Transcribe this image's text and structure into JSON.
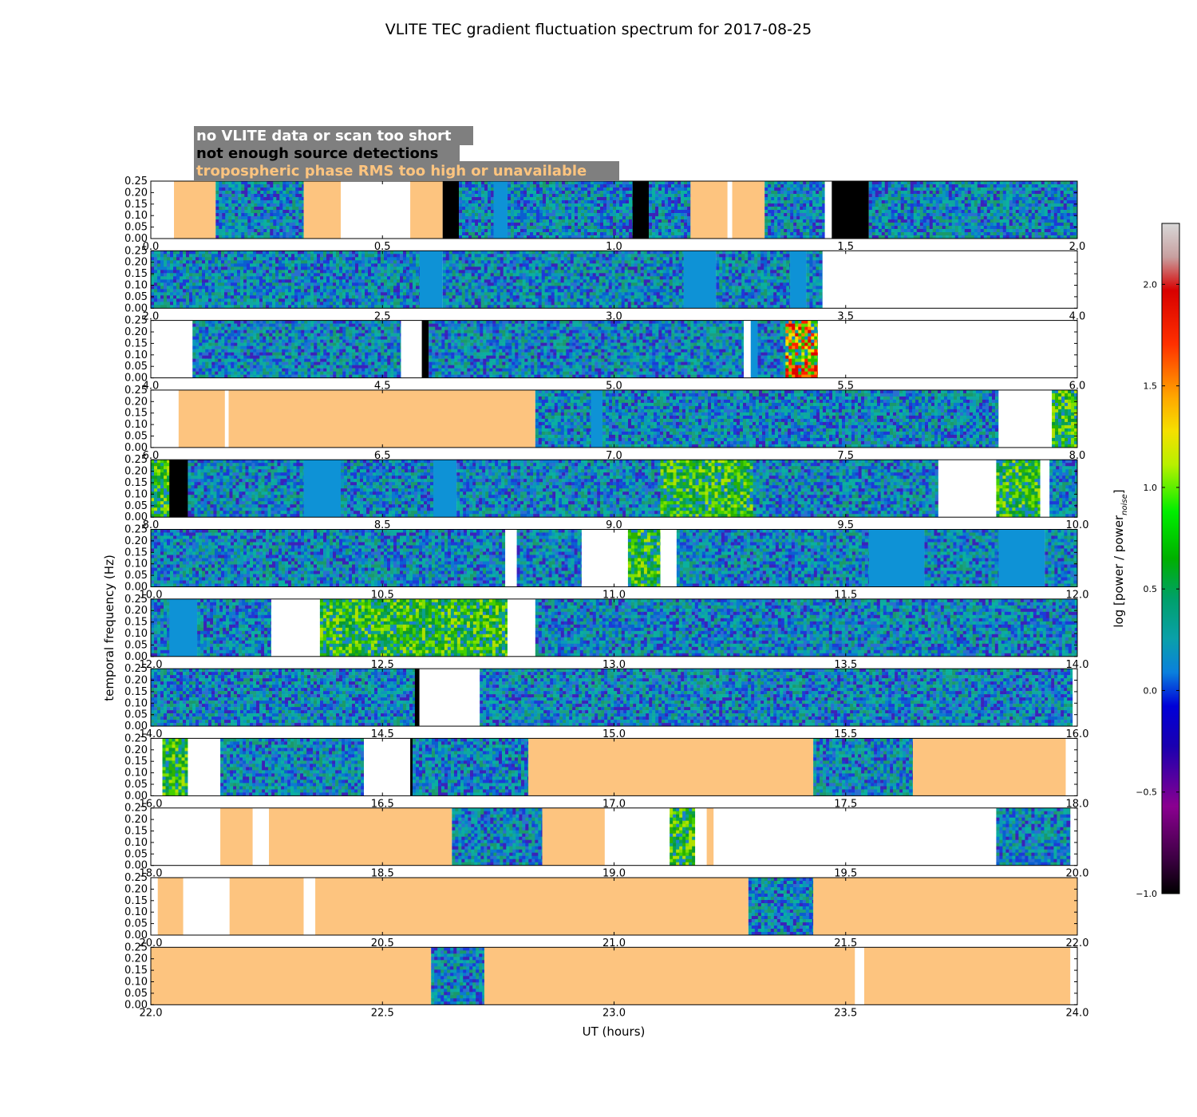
{
  "chart_data": {
    "type": "heatmap",
    "title": "VLITE TEC gradient fluctuation spectrum for 2017-08-25",
    "xlabel": "UT (hours)",
    "ylabel": "temporal frequency (Hz)",
    "colorbar": {
      "label": "log [power / power",
      "label_sub": "noise",
      "label_close": "]",
      "range": [
        -1.0,
        2.3
      ],
      "ticks": [
        "−1.0",
        "−0.5",
        "0.0",
        "0.5",
        "1.0",
        "1.5",
        "2.0"
      ],
      "tick_values": [
        -1.0,
        -0.5,
        0.0,
        0.5,
        1.0,
        1.5,
        2.0
      ]
    },
    "yticks": [
      "0.00",
      "0.05",
      "0.10",
      "0.15",
      "0.20",
      "0.25"
    ],
    "ytick_values": [
      0.0,
      0.05,
      0.1,
      0.15,
      0.2,
      0.25
    ],
    "ylim": [
      0,
      0.25
    ],
    "legend": [
      {
        "text": "no VLITE data or scan too short",
        "color": "#ffffff"
      },
      {
        "text": "not enough source detections",
        "color": "#000000"
      },
      {
        "text": "tropospheric phase RMS too high or unavailable",
        "color": "#fdc47f"
      }
    ],
    "status_colors": {
      "none": "#ffffff",
      "low": "#000000",
      "trop": "#fdc47f",
      "flat": "#0e92d6"
    },
    "panels": [
      {
        "xlim": [
          0.0,
          2.0
        ],
        "xticks": [
          "0.0",
          "0.5",
          "1.0",
          "1.5",
          "2.0"
        ],
        "segments": [
          [
            0.0,
            0.05,
            "none"
          ],
          [
            0.05,
            0.14,
            "trop"
          ],
          [
            0.14,
            0.33,
            "data"
          ],
          [
            0.33,
            0.41,
            "trop"
          ],
          [
            0.41,
            0.56,
            "none"
          ],
          [
            0.56,
            0.63,
            "trop"
          ],
          [
            0.63,
            0.665,
            "low"
          ],
          [
            0.665,
            0.74,
            "data"
          ],
          [
            0.74,
            0.77,
            "flat"
          ],
          [
            0.77,
            1.04,
            "data"
          ],
          [
            1.04,
            1.075,
            "low"
          ],
          [
            1.075,
            1.165,
            "data"
          ],
          [
            1.165,
            1.245,
            "trop"
          ],
          [
            1.245,
            1.255,
            "none"
          ],
          [
            1.255,
            1.325,
            "trop"
          ],
          [
            1.325,
            1.455,
            "data"
          ],
          [
            1.455,
            1.47,
            "none"
          ],
          [
            1.47,
            1.55,
            "low"
          ],
          [
            1.55,
            2.0,
            "data"
          ]
        ]
      },
      {
        "xlim": [
          2.0,
          4.0
        ],
        "xticks": [
          "2.0",
          "2.5",
          "3.0",
          "3.5",
          "4.0"
        ],
        "segments": [
          [
            2.0,
            2.58,
            "data"
          ],
          [
            2.58,
            2.63,
            "flat"
          ],
          [
            2.63,
            3.15,
            "data"
          ],
          [
            3.15,
            3.22,
            "flat"
          ],
          [
            3.22,
            3.38,
            "data"
          ],
          [
            3.38,
            3.415,
            "flat"
          ],
          [
            3.415,
            3.45,
            "data"
          ],
          [
            3.45,
            4.0,
            "none"
          ]
        ]
      },
      {
        "xlim": [
          4.0,
          6.0
        ],
        "xticks": [
          "4.0",
          "4.5",
          "5.0",
          "5.5",
          "6.0"
        ],
        "segments": [
          [
            4.0,
            4.09,
            "none"
          ],
          [
            4.09,
            4.54,
            "data"
          ],
          [
            4.54,
            4.585,
            "none"
          ],
          [
            4.585,
            4.6,
            "low"
          ],
          [
            4.6,
            5.28,
            "data"
          ],
          [
            5.28,
            5.295,
            "none"
          ],
          [
            5.295,
            5.31,
            "flat"
          ],
          [
            5.31,
            5.37,
            "data"
          ],
          [
            5.37,
            5.44,
            "hot"
          ],
          [
            5.44,
            6.0,
            "none"
          ]
        ]
      },
      {
        "xlim": [
          6.0,
          8.0
        ],
        "xticks": [
          "6.0",
          "6.5",
          "7.0",
          "7.5",
          "8.0"
        ],
        "segments": [
          [
            6.0,
            6.06,
            "none"
          ],
          [
            6.06,
            6.16,
            "trop"
          ],
          [
            6.16,
            6.168,
            "none"
          ],
          [
            6.168,
            6.83,
            "trop"
          ],
          [
            6.83,
            6.95,
            "data"
          ],
          [
            6.95,
            6.975,
            "flat"
          ],
          [
            6.975,
            7.83,
            "data"
          ],
          [
            7.83,
            7.945,
            "none"
          ],
          [
            7.945,
            8.0,
            "green"
          ]
        ]
      },
      {
        "xlim": [
          8.0,
          10.0
        ],
        "xticks": [
          "8.0",
          "8.5",
          "9.0",
          "9.5",
          "10.0"
        ],
        "segments": [
          [
            8.0,
            8.04,
            "green"
          ],
          [
            8.04,
            8.08,
            "low"
          ],
          [
            8.08,
            8.33,
            "data"
          ],
          [
            8.33,
            8.41,
            "flat"
          ],
          [
            8.41,
            8.61,
            "data"
          ],
          [
            8.61,
            8.66,
            "flat"
          ],
          [
            8.66,
            9.1,
            "data"
          ],
          [
            9.1,
            9.3,
            "green"
          ],
          [
            9.3,
            9.7,
            "data"
          ],
          [
            9.7,
            9.825,
            "none"
          ],
          [
            9.825,
            9.92,
            "green"
          ],
          [
            9.92,
            9.94,
            "none"
          ],
          [
            9.94,
            10.0,
            "data"
          ]
        ]
      },
      {
        "xlim": [
          10.0,
          12.0
        ],
        "xticks": [
          "10.0",
          "10.5",
          "11.0",
          "11.5",
          "12.0"
        ],
        "segments": [
          [
            10.0,
            10.765,
            "data"
          ],
          [
            10.765,
            10.79,
            "none"
          ],
          [
            10.79,
            10.93,
            "data"
          ],
          [
            10.93,
            11.03,
            "none"
          ],
          [
            11.03,
            11.1,
            "green"
          ],
          [
            11.1,
            11.135,
            "none"
          ],
          [
            11.135,
            11.55,
            "data"
          ],
          [
            11.55,
            11.67,
            "flat"
          ],
          [
            11.67,
            11.83,
            "data"
          ],
          [
            11.83,
            11.93,
            "flat"
          ],
          [
            11.93,
            12.0,
            "data"
          ]
        ]
      },
      {
        "xlim": [
          12.0,
          14.0
        ],
        "xticks": [
          "12.0",
          "12.5",
          "13.0",
          "13.5",
          "14.0"
        ],
        "segments": [
          [
            12.0,
            12.04,
            "data"
          ],
          [
            12.04,
            12.1,
            "flat"
          ],
          [
            12.1,
            12.26,
            "data"
          ],
          [
            12.26,
            12.365,
            "none"
          ],
          [
            12.365,
            12.77,
            "green"
          ],
          [
            12.77,
            12.83,
            "none"
          ],
          [
            12.83,
            14.0,
            "data"
          ]
        ]
      },
      {
        "xlim": [
          14.0,
          16.0
        ],
        "xticks": [
          "14.0",
          "14.5",
          "15.0",
          "15.5",
          "16.0"
        ],
        "segments": [
          [
            14.0,
            14.57,
            "data"
          ],
          [
            14.57,
            14.58,
            "low"
          ],
          [
            14.58,
            14.71,
            "none"
          ],
          [
            14.71,
            15.99,
            "data"
          ],
          [
            15.99,
            16.0,
            "none"
          ]
        ]
      },
      {
        "xlim": [
          16.0,
          18.0
        ],
        "xticks": [
          "16.0",
          "16.5",
          "17.0",
          "17.5",
          "18.0"
        ],
        "segments": [
          [
            16.0,
            16.025,
            "none"
          ],
          [
            16.025,
            16.08,
            "green"
          ],
          [
            16.08,
            16.15,
            "none"
          ],
          [
            16.15,
            16.46,
            "data"
          ],
          [
            16.46,
            16.56,
            "none"
          ],
          [
            16.56,
            16.565,
            "low"
          ],
          [
            16.565,
            16.815,
            "data"
          ],
          [
            16.815,
            17.43,
            "trop"
          ],
          [
            17.43,
            17.645,
            "data"
          ],
          [
            17.645,
            17.975,
            "trop"
          ],
          [
            17.975,
            18.0,
            "none"
          ]
        ]
      },
      {
        "xlim": [
          18.0,
          20.0
        ],
        "xticks": [
          "18.0",
          "18.5",
          "19.0",
          "19.5",
          "20.0"
        ],
        "segments": [
          [
            18.0,
            18.15,
            "none"
          ],
          [
            18.15,
            18.22,
            "trop"
          ],
          [
            18.22,
            18.255,
            "none"
          ],
          [
            18.255,
            18.65,
            "trop"
          ],
          [
            18.65,
            18.845,
            "data"
          ],
          [
            18.845,
            18.98,
            "trop"
          ],
          [
            18.98,
            19.12,
            "none"
          ],
          [
            19.12,
            19.175,
            "green"
          ],
          [
            19.175,
            19.2,
            "none"
          ],
          [
            19.2,
            19.215,
            "trop"
          ],
          [
            19.215,
            19.825,
            "none"
          ],
          [
            19.825,
            19.985,
            "data"
          ],
          [
            19.985,
            20.0,
            "none"
          ]
        ]
      },
      {
        "xlim": [
          20.0,
          22.0
        ],
        "xticks": [
          "20.0",
          "20.5",
          "21.0",
          "21.5",
          "22.0"
        ],
        "segments": [
          [
            20.0,
            20.015,
            "none"
          ],
          [
            20.015,
            20.07,
            "trop"
          ],
          [
            20.07,
            20.17,
            "none"
          ],
          [
            20.17,
            20.33,
            "trop"
          ],
          [
            20.33,
            20.355,
            "none"
          ],
          [
            20.355,
            21.29,
            "trop"
          ],
          [
            21.29,
            21.43,
            "data"
          ],
          [
            21.43,
            22.0,
            "trop"
          ]
        ]
      },
      {
        "xlim": [
          22.0,
          24.0
        ],
        "xticks": [
          "22.0",
          "22.5",
          "23.0",
          "23.5",
          "24.0"
        ],
        "segments": [
          [
            22.0,
            22.605,
            "trop"
          ],
          [
            22.605,
            22.72,
            "data"
          ],
          [
            22.72,
            23.52,
            "trop"
          ],
          [
            23.52,
            23.54,
            "none"
          ],
          [
            23.54,
            23.985,
            "trop"
          ],
          [
            23.985,
            24.0,
            "none"
          ]
        ]
      }
    ]
  }
}
